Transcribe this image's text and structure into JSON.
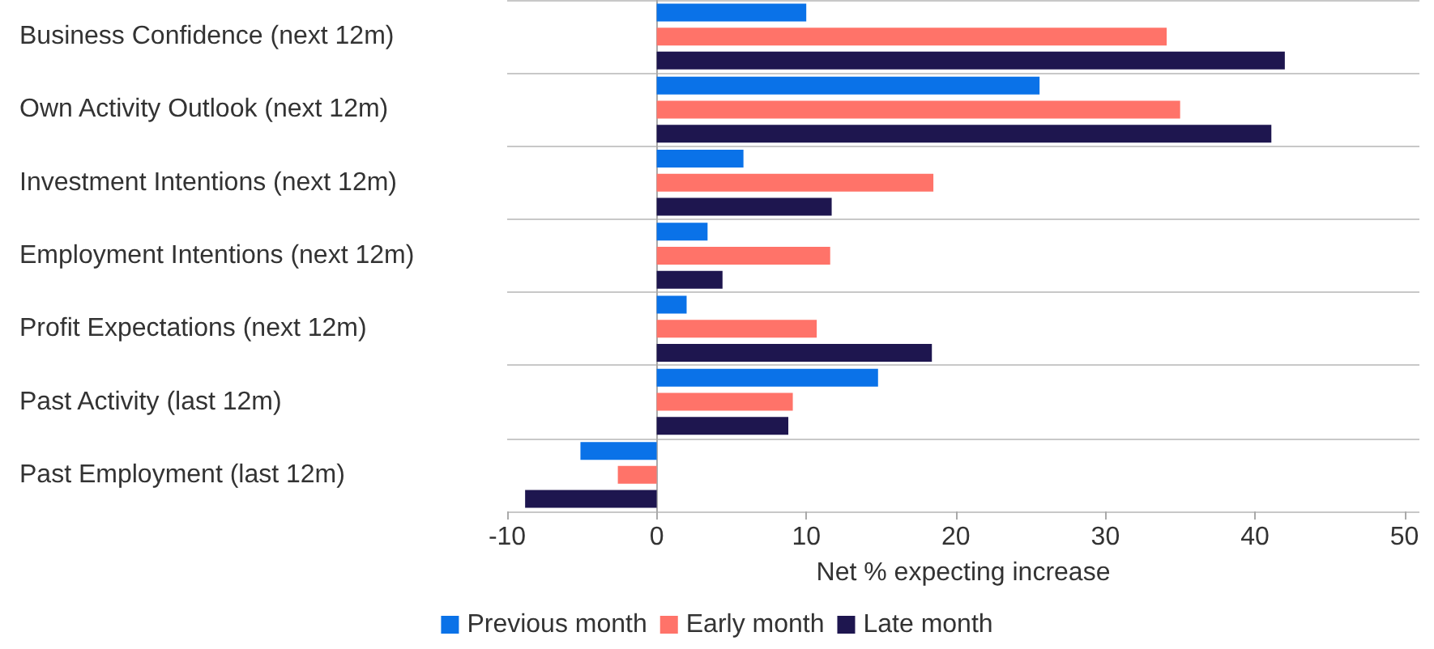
{
  "chart_data": {
    "type": "bar",
    "orientation": "horizontal",
    "xlabel": "Net % expecting increase",
    "categories": [
      "Business Confidence (next 12m)",
      "Own Activity Outlook (next 12m)",
      "Investment Intentions (next 12m)",
      "Employment Intentions (next 12m)",
      "Profit Expectations (next 12m)",
      "Past Activity (last 12m)",
      "Past Employment (last 12m)"
    ],
    "series": [
      {
        "name": "Previous month",
        "color": "#0a72e8",
        "values": [
          10.0,
          25.6,
          5.8,
          3.4,
          2.0,
          14.8,
          -5.1
        ]
      },
      {
        "name": "Early month",
        "color": "#ff7369",
        "values": [
          34.1,
          35.0,
          18.5,
          11.6,
          10.7,
          9.1,
          -2.6
        ]
      },
      {
        "name": "Late month",
        "color": "#1e164f",
        "values": [
          42.0,
          41.1,
          11.7,
          4.4,
          18.4,
          8.8,
          -8.8
        ]
      }
    ],
    "xlim": [
      -10,
      51
    ],
    "xticks": [
      -10,
      0,
      10,
      20,
      30,
      40,
      50
    ],
    "grid": "y",
    "legend": "bottom"
  }
}
